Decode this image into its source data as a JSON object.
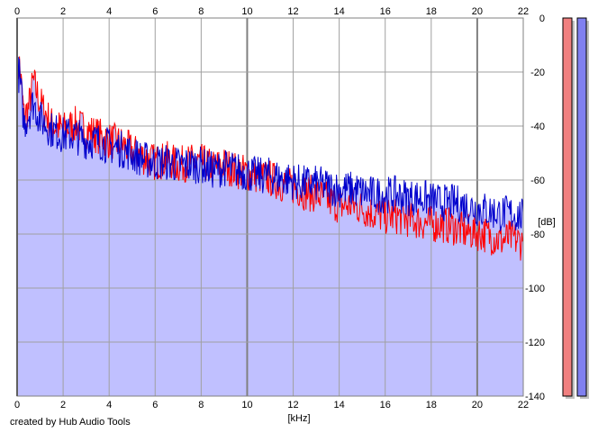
{
  "credit": "created by Hub Audio Tools",
  "colors": {
    "background": "#ffffff",
    "fill": "#c0c0ff",
    "grid": "#a0a0a0",
    "major_grid": "#808080",
    "channel_left": "#ff0000",
    "channel_right": "#0000cc",
    "meter_left": "#f08080",
    "meter_right": "#8080f0"
  },
  "chart_data": {
    "type": "line",
    "title": "",
    "xlabel": "[kHz]",
    "ylabel": "[dB]",
    "xlim": [
      0,
      22
    ],
    "ylim": [
      -140,
      0
    ],
    "grid": true,
    "x_ticks": [
      "0",
      "2",
      "4",
      "6",
      "8",
      "10",
      "12",
      "14",
      "16",
      "18",
      "20",
      "22"
    ],
    "y_ticks": [
      "0",
      "-20",
      "-40",
      "-60",
      "-80",
      "-100",
      "-120",
      "-140"
    ],
    "series": [
      {
        "color": "#ff0000",
        "x": [
          0,
          0.1,
          0.2,
          0.3,
          0.5,
          0.7,
          1,
          1.5,
          2,
          2.5,
          3,
          3.5,
          4,
          4.5,
          5,
          5.5,
          6,
          6.5,
          7,
          7.5,
          8,
          8.5,
          9,
          9.5,
          10,
          10.5,
          11,
          11.5,
          12,
          12.5,
          13,
          13.5,
          14,
          14.5,
          15,
          15.5,
          16,
          16.5,
          17,
          17.5,
          18,
          18.5,
          19,
          19.5,
          20,
          20.5,
          21,
          21.5,
          22
        ],
        "y": [
          -20,
          -16,
          -25,
          -35,
          -32,
          -22,
          -30,
          -38,
          -40,
          -38,
          -40,
          -42,
          -44,
          -45,
          -48,
          -50,
          -52,
          -51,
          -53,
          -52,
          -52,
          -54,
          -53,
          -55,
          -56,
          -57,
          -58,
          -60,
          -61,
          -63,
          -64,
          -66,
          -68,
          -68,
          -69,
          -71,
          -72,
          -72,
          -73,
          -74,
          -75,
          -75,
          -76,
          -78,
          -78,
          -79,
          -81,
          -80,
          -82
        ]
      },
      {
        "color": "#0000cc",
        "x": [
          0,
          0.1,
          0.2,
          0.3,
          0.5,
          0.7,
          1,
          1.5,
          2,
          2.5,
          3,
          3.5,
          4,
          4.5,
          5,
          5.5,
          6,
          6.5,
          7,
          7.5,
          8,
          8.5,
          9,
          9.5,
          10,
          10.5,
          11,
          11.5,
          12,
          12.5,
          13,
          13.5,
          14,
          14.5,
          15,
          15.5,
          16,
          16.5,
          17,
          17.5,
          18,
          18.5,
          19,
          19.5,
          20,
          20.5,
          21,
          21.5,
          22
        ],
        "y": [
          -18,
          -20,
          -28,
          -38,
          -34,
          -30,
          -36,
          -40,
          -42,
          -42,
          -44,
          -44,
          -46,
          -47,
          -49,
          -51,
          -52,
          -52,
          -53,
          -53,
          -53,
          -55,
          -54,
          -55,
          -56,
          -57,
          -57,
          -58,
          -59,
          -60,
          -60,
          -61,
          -62,
          -62,
          -63,
          -64,
          -64,
          -64,
          -65,
          -65,
          -66,
          -67,
          -67,
          -68,
          -69,
          -70,
          -71,
          -71,
          -72
        ]
      }
    ]
  },
  "meters": [
    {
      "name": "left",
      "level": 1.0
    },
    {
      "name": "right",
      "level": 1.0
    }
  ]
}
